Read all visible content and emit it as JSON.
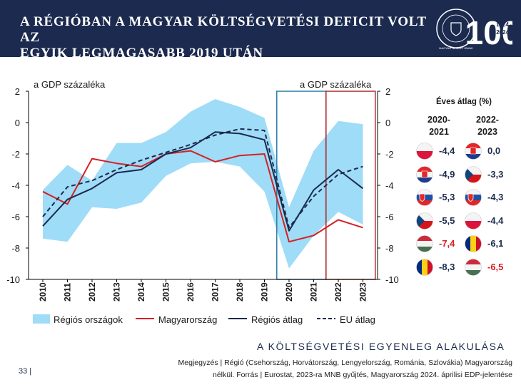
{
  "header": {
    "title_line1": "A RÉGIÓBAN A MAGYAR KÖLTSÉGVETÉSI DEFICIT VOLT AZ",
    "title_line2": "EGYIK LEGMAGASABB 2019 UTÁN",
    "logo_number": "100",
    "logo_years_top": "1924",
    "logo_years_bottom": "2024",
    "logo_text": "MAGYAR NEMZETI BANK"
  },
  "chart_data": {
    "type": "line",
    "left_axis_label": "a GDP százaléka",
    "right_axis_label": "a GDP százaléka",
    "ylim": [
      -10,
      2
    ],
    "yticks": [
      2,
      0,
      -2,
      -4,
      -6,
      -8,
      -10
    ],
    "x": [
      "2010",
      "2011",
      "2012",
      "2013",
      "2014",
      "2015",
      "2016",
      "2017",
      "2018",
      "2019",
      "2020",
      "2021",
      "2022",
      "2023"
    ],
    "band": {
      "name": "Régiós országok",
      "upper": [
        -4.3,
        -2.7,
        -3.7,
        -1.3,
        -1.3,
        -0.6,
        0.7,
        1.5,
        1.0,
        0.3,
        -5.4,
        -1.8,
        0.1,
        -0.1
      ],
      "lower": [
        -7.4,
        -7.6,
        -5.4,
        -5.5,
        -5.1,
        -3.4,
        -2.6,
        -2.5,
        -2.8,
        -4.4,
        -9.3,
        -7.2,
        -5.7,
        -6.5
      ]
    },
    "series": [
      {
        "name": "Magyarország",
        "values": [
          -4.4,
          -5.2,
          -2.3,
          -2.6,
          -2.8,
          -2.0,
          -1.8,
          -2.5,
          -2.1,
          -2.0,
          -7.6,
          -7.2,
          -6.2,
          -6.7
        ]
      },
      {
        "name": "Régiós átlag",
        "values": [
          -6.6,
          -4.9,
          -4.2,
          -3.2,
          -3.0,
          -2.0,
          -1.6,
          -0.6,
          -0.7,
          -1.1,
          -6.9,
          -4.3,
          -3.0,
          -4.2
        ]
      },
      {
        "name": "EU átlag",
        "values": [
          -6.0,
          -4.1,
          -3.7,
          -3.0,
          -2.4,
          -1.9,
          -1.4,
          -0.8,
          -0.4,
          -0.5,
          -6.7,
          -4.7,
          -3.3,
          -2.8
        ]
      }
    ],
    "highlight_boxes": [
      {
        "from": "2020",
        "to": "2021",
        "color": "#2a7ea8"
      },
      {
        "from": "2022",
        "to": "2023",
        "color": "#b02a2a"
      }
    ],
    "legend_position": "bottom",
    "grid": false
  },
  "colors": {
    "band": "#9fdcf7",
    "hungary": "#d62024",
    "regional": "#1b2a4e",
    "eu": "#1b2a4e",
    "header_bg": "#1b2a4e"
  },
  "averages": {
    "title": "Éves átlag (%)",
    "col1_head": [
      "2020-",
      "2021"
    ],
    "col2_head": [
      "2022-",
      "2023"
    ],
    "col1": [
      {
        "flag": "poland-flag-icon",
        "value": "-4,4",
        "color": "#1b2a4e"
      },
      {
        "flag": "croatia-flag-icon",
        "value": "-4,9",
        "color": "#1b2a4e"
      },
      {
        "flag": "slovakia-flag-icon",
        "value": "-5,3",
        "color": "#1b2a4e"
      },
      {
        "flag": "czechia-flag-icon",
        "value": "-5,5",
        "color": "#1b2a4e"
      },
      {
        "flag": "hungary-flag-icon",
        "value": "-7,4",
        "color": "#d62024"
      },
      {
        "flag": "romania-flag-icon",
        "value": "-8,3",
        "color": "#1b2a4e"
      }
    ],
    "col2": [
      {
        "flag": "croatia-flag-icon",
        "value": "0,0",
        "color": "#1b2a4e"
      },
      {
        "flag": "czechia-flag-icon",
        "value": "-3,3",
        "color": "#1b2a4e"
      },
      {
        "flag": "slovakia-flag-icon",
        "value": "-4,3",
        "color": "#1b2a4e"
      },
      {
        "flag": "poland-flag-icon",
        "value": "-4,4",
        "color": "#1b2a4e"
      },
      {
        "flag": "romania-flag-icon",
        "value": "-6,1",
        "color": "#1b2a4e"
      },
      {
        "flag": "hungary-flag-icon",
        "value": "-6,5",
        "color": "#d62024"
      }
    ]
  },
  "caption": "A KÖLTSÉGVETÉSI EGYENLEG ALAKULÁSA",
  "footnote": {
    "line1": "Megjegyzés | Régió (Csehország, Horvátország, Lengyelország, Románia, Szlovákia) Magyarország",
    "line2": "nélkül. Forrás | Eurostat, 2023-ra MNB gyűjtés, Magyarország 2024. áprilisi EDP-jelentése"
  },
  "page_number": "33 |"
}
